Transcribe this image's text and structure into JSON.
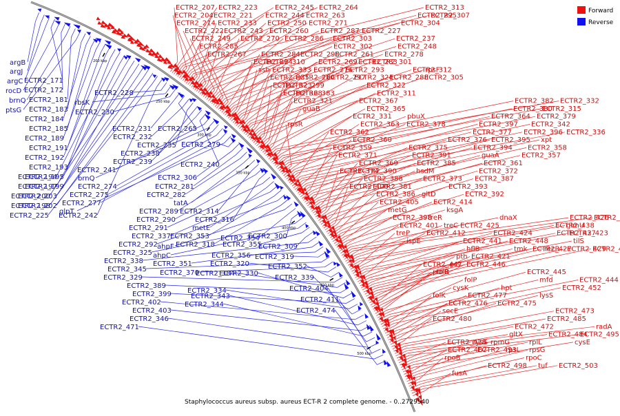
{
  "caption": "Staphylococcus aureus subsp. aureus ECT-R 2 complete genome. - 0..2729540",
  "legend": [
    {
      "label": "Forward",
      "color": "#ee1111"
    },
    {
      "label": "Reverse",
      "color": "#1111ee"
    }
  ],
  "ticks": [
    "200 kbp",
    "250 kbp",
    "300 kbp",
    "350 kbp",
    "400 kbp",
    "450 kbp",
    "500 kbp"
  ],
  "forward_labels": [
    "ECTR2_207",
    "ECTR2_223",
    "ECTR2_245",
    "ECTR2_264",
    "ECTR2_313",
    "ECTR2_204",
    "ECTR2_221",
    "ECTR2_244",
    "ECTR2_263",
    "ECTR2_295",
    "ECTR2_307",
    "ECTR2_214",
    "ECTR2_233",
    "ECTR2_250",
    "ECTR2_271",
    "ECTR2_304",
    "ECTR2_222",
    "ECTR2_243",
    "ECTR2_260",
    "ECTR2_287",
    "ECTR2_227",
    "ECTR2_249",
    "ECTR2_270",
    "ECTR2_286",
    "ECTR2_303",
    "ECTR2_237",
    "ECTR2_285",
    "ECTR2_302",
    "ECTR2_248",
    "ECTR2_267",
    "ECTR2_284",
    "ECTR2_298",
    "ECTR2_261",
    "ECTR2_278",
    "ECTR2_294",
    "ECTR2_310",
    "ECTR2_269",
    "ECTR2_283",
    "ECTR2_301",
    "ssb",
    "ECTR2_333",
    "ECTR2_276",
    "ECTR2_293",
    "ECTR2_312",
    "rpsF",
    "ECTR2_335",
    "ECTR2_280",
    "ECTR2_297",
    "ECTR2_324",
    "ECTR2_288",
    "ECTR2_305",
    "ECTR2_323",
    "ECTR2_299",
    "ECTR2_322",
    "ECTR2_368",
    "ECTR2_383",
    "ECTR2_311",
    "ECTR2_321",
    "ECTR2_367",
    "ECTR2_382",
    "ECTR2_332",
    "guaB",
    "ECTR2_365",
    "ECTR2_380",
    "ECTR2_315",
    "ECTR2_331",
    "pbuX",
    "ECTR2_364",
    "ECTR2_379",
    "rpsR",
    "ECTR2_363",
    "ECTR2_378",
    "ECTR2_397",
    "ECTR2_342",
    "ECTR2_362",
    "ECTR2_377",
    "ECTR2_396",
    "ECTR2_336",
    "ECTR2_360",
    "ECTR2_376",
    "ECTR2_395",
    "xpt",
    "ECTR2_359",
    "ECTR2_375",
    "ECTR2_394",
    "ECTR2_358",
    "ECTR2_371",
    "ECTR2_391",
    "guaA",
    "ECTR2_357",
    "ECTR2_369",
    "ECTR2_385",
    "ECTR2_361",
    "ECTR2_374",
    "ECTR2_390",
    "hsdM",
    "ECTR2_372",
    "ECTR2_388",
    "ECTR2_373",
    "ECTR2_387",
    "ECTR2_400",
    "ECTR2_381",
    "ECTR2_393",
    "ECTR2_386",
    "gltD",
    "ECTR2_392",
    "ECTR2_405",
    "ECTR2_414",
    "metG",
    "ksgA",
    "ECTR2_398",
    "treR",
    "dnaX",
    "ECTR2_426",
    "ECTR2_428",
    "ECTR2_401",
    "treC",
    "ECTR2_425",
    "ECTR2_438",
    "glmU",
    "treP",
    "ECTR2_412",
    "ECTR2_424",
    "ECTR2_437",
    "ECTR2_423",
    "ispE",
    "ECTR2_441",
    "ECTR2_448",
    "tilS",
    "hflB",
    "tmk",
    "ECTR2_427",
    "recR",
    "ECTR2_429",
    "ECTR2_434",
    "pth",
    "ECTR2_421",
    "ECTR2_447",
    "prs",
    "ECTR2_446",
    "folB",
    "purR",
    "ECTR2_445",
    "folP",
    "mfd",
    "ECTR2_444",
    "cysK",
    "hpt",
    "ECTR2_452",
    "folK",
    "ECTR2_477",
    "lysS",
    "ECTR2_476",
    "ECTR2_475",
    "secE",
    "ECTR2_473",
    "ECTR2_480",
    "ECTR2_485",
    "ECTR2_472",
    "radA",
    "gltX",
    "ECTR2_484",
    "ECTR2_495",
    "ECTR2_478",
    "cysS",
    "rpmG",
    "rplL",
    "cysE",
    "ECTR2_487",
    "ECTR2_493",
    "rpsL",
    "rpsG",
    "rpoB",
    "rpoC",
    "ECTR2_498",
    "tuf",
    "ECTR2_503",
    "fusA"
  ],
  "reverse_labels": [
    "argB",
    "argJ",
    "argC",
    "ECTR2_171",
    "rocD",
    "ECTR2_172",
    "brnQ",
    "ECTR2_181",
    "ptsG",
    "ECTR2_183",
    "ECTR2_184",
    "ECTR2_185",
    "ECTR2_189",
    "ECTR2_191",
    "ECTR2_192",
    "ECTR2_193",
    "ECTR2_194",
    "ECTR2_195",
    "ECTR2_197",
    "ECTR2_199",
    "ECTR2_200",
    "ECTR2_203",
    "ECTR2_198",
    "ECTR2_202",
    "ECTR2_225",
    "ECTR2_242",
    "ECTR2_228",
    "rbsK",
    "ECTR2_230",
    "ECTR2_231",
    "ECTR2_265",
    "ECTR2_232",
    "ECTR2_235",
    "ECTR2_238",
    "ECTR2_239",
    "ECTR2_240",
    "ECTR2_241",
    "brnQ",
    "ECTR2_274",
    "ECTR2_275",
    "ECTR2_277",
    "glpT",
    "ECTR2_279",
    "ECTR2_306",
    "ECTR2_281",
    "ECTR2_282",
    "tatA",
    "ECTR2_289",
    "ECTR2_314",
    "ECTR2_290",
    "ECTR2_316",
    "ECTR2_291",
    "metE",
    "ECTR2_337",
    "ECTR2_353",
    "ECTR2_292",
    "ECTR2_318",
    "ahpF",
    "ECTR2_354",
    "ECTR2_300",
    "ECTR2_325",
    "ahpC",
    "ECTR2_355",
    "ECTR2_309",
    "ECTR2_338",
    "ECTR2_351",
    "ECTR2_356",
    "ECTR2_319",
    "ECTR2_345",
    "ECTR2_370",
    "ECTR2_320",
    "ECTR2_352",
    "ECTR2_329",
    "ECTR2_384",
    "ECTR2_389",
    "ECTR2_330",
    "ECTR2_399",
    "ECTR2_334",
    "ECTR2_339",
    "ECTR2_402",
    "ECTR2_343",
    "ECTR2_403",
    "ECTR2_344",
    "ECTR2_404",
    "ECTR2_346",
    "ECTR2_411",
    "ECTR2_471",
    "ECTR2_474"
  ]
}
